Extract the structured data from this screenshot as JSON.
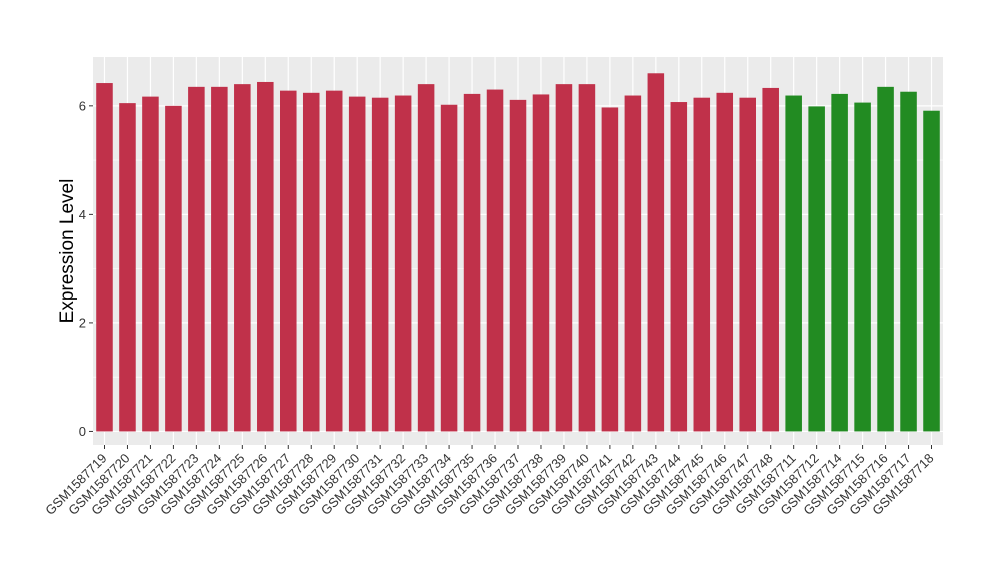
{
  "chart_data": {
    "type": "bar",
    "title": "",
    "xlabel": "",
    "ylabel": "Expression Level",
    "ylim": [
      -0.25,
      6.9
    ],
    "yticks": [
      0,
      2,
      4,
      6
    ],
    "grid": true,
    "colors": {
      "group1": "#c0314a",
      "group2": "#228b22",
      "panel": "#ebebeb",
      "gridline": "#ffffff"
    },
    "categories": [
      "GSM1587719",
      "GSM1587720",
      "GSM1587721",
      "GSM1587722",
      "GSM1587723",
      "GSM1587724",
      "GSM1587725",
      "GSM1587726",
      "GSM1587727",
      "GSM1587728",
      "GSM1587729",
      "GSM1587730",
      "GSM1587731",
      "GSM1587732",
      "GSM1587733",
      "GSM1587734",
      "GSM1587735",
      "GSM1587736",
      "GSM1587737",
      "GSM1587738",
      "GSM1587739",
      "GSM1587740",
      "GSM1587741",
      "GSM1587742",
      "GSM1587743",
      "GSM1587744",
      "GSM1587745",
      "GSM1587746",
      "GSM1587747",
      "GSM1587748",
      "GSM1587711",
      "GSM1587712",
      "GSM1587714",
      "GSM1587715",
      "GSM1587716",
      "GSM1587717",
      "GSM1587718"
    ],
    "values": [
      6.42,
      6.05,
      6.17,
      6.0,
      6.35,
      6.35,
      6.4,
      6.44,
      6.28,
      6.24,
      6.28,
      6.17,
      6.15,
      6.19,
      6.4,
      6.02,
      6.22,
      6.3,
      6.11,
      6.21,
      6.4,
      6.4,
      5.97,
      6.19,
      6.6,
      6.07,
      6.15,
      6.24,
      6.15,
      6.33,
      6.19,
      5.99,
      6.22,
      6.06,
      6.35,
      6.26,
      5.91
    ],
    "groups": [
      "group1",
      "group1",
      "group1",
      "group1",
      "group1",
      "group1",
      "group1",
      "group1",
      "group1",
      "group1",
      "group1",
      "group1",
      "group1",
      "group1",
      "group1",
      "group1",
      "group1",
      "group1",
      "group1",
      "group1",
      "group1",
      "group1",
      "group1",
      "group1",
      "group1",
      "group1",
      "group1",
      "group1",
      "group1",
      "group1",
      "group2",
      "group2",
      "group2",
      "group2",
      "group2",
      "group2",
      "group2"
    ]
  }
}
